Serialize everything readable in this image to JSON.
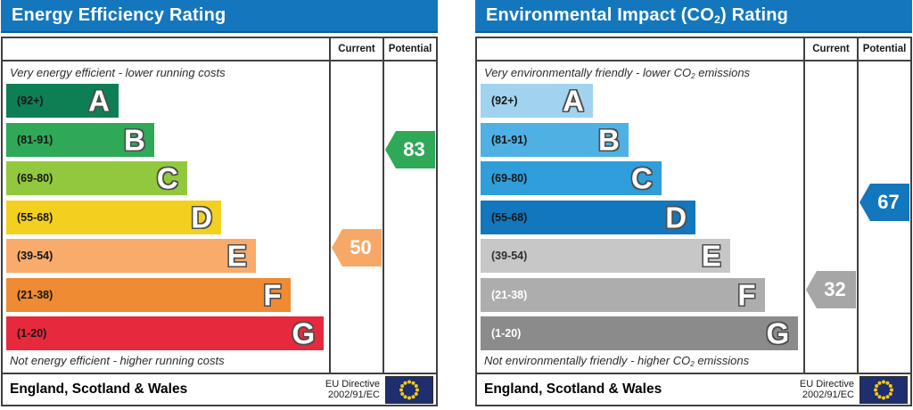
{
  "chart_data": [
    {
      "type": "bar",
      "title": "Energy Efficiency Rating",
      "categories": [
        "A",
        "B",
        "C",
        "D",
        "E",
        "F",
        "G"
      ],
      "band_ranges": [
        "92+",
        "81-91",
        "69-80",
        "55-68",
        "39-54",
        "21-38",
        "1-20"
      ],
      "band_widths_pct": [
        34.8,
        45.8,
        56.0,
        66.6,
        77.3,
        88.0,
        98.4
      ],
      "current": 50,
      "current_band": "E",
      "potential": 83,
      "potential_band": "B",
      "top_caption": "Very energy efficient - lower running costs",
      "bottom_caption": "Not energy efficient - higher running costs"
    },
    {
      "type": "bar",
      "title": "Environmental Impact (CO2) Rating",
      "categories": [
        "A",
        "B",
        "C",
        "D",
        "E",
        "F",
        "G"
      ],
      "band_ranges": [
        "92+",
        "81-91",
        "69-80",
        "55-68",
        "39-54",
        "21-38",
        "1-20"
      ],
      "band_widths_pct": [
        34.8,
        45.8,
        56.0,
        66.6,
        77.3,
        88.0,
        98.4
      ],
      "current": 32,
      "current_band": "F",
      "potential": 67,
      "potential_band": "D",
      "top_caption": "Very environmentally friendly - lower CO2 emissions",
      "bottom_caption": "Not environmentally friendly - higher CO2 emissions"
    }
  ],
  "colors": {
    "header_bg": "#1477bd",
    "border": "#404040",
    "eu_flag_bg": "#1e2e6e",
    "eu_flag_stars": "#f5c911"
  },
  "panels": [
    {
      "title_pre": "Energy Efficiency Rating",
      "title_sub": "",
      "title_post": "",
      "header_bg": "#1477bd",
      "col_current": "Current",
      "col_potential": "Potential",
      "cap_top_pre": "Very energy efficient - lower running costs",
      "cap_top_sub": "",
      "cap_top_post": "",
      "cap_bottom_pre": "Not energy efficient - higher running costs",
      "cap_bottom_sub": "",
      "cap_bottom_post": "",
      "bands": [
        {
          "letter": "A",
          "range": "(92+)",
          "min": 92,
          "max": 100,
          "width_pct": 34.8,
          "color": "#0e7e55",
          "label_color": "#161616"
        },
        {
          "letter": "B",
          "range": "(81-91)",
          "min": 81,
          "max": 91,
          "width_pct": 45.8,
          "color": "#2fa857",
          "label_color": "#161616"
        },
        {
          "letter": "C",
          "range": "(69-80)",
          "min": 69,
          "max": 80,
          "width_pct": 56.0,
          "color": "#92c83e",
          "label_color": "#161616"
        },
        {
          "letter": "D",
          "range": "(55-68)",
          "min": 55,
          "max": 68,
          "width_pct": 66.6,
          "color": "#f3d020",
          "label_color": "#161616"
        },
        {
          "letter": "E",
          "range": "(39-54)",
          "min": 39,
          "max": 54,
          "width_pct": 77.3,
          "color": "#f8ab6b",
          "label_color": "#161616"
        },
        {
          "letter": "F",
          "range": "(21-38)",
          "min": 21,
          "max": 38,
          "width_pct": 88.0,
          "color": "#ee8b33",
          "label_color": "#161616"
        },
        {
          "letter": "G",
          "range": "(1-20)",
          "min": 1,
          "max": 20,
          "width_pct": 98.4,
          "color": "#e7293d",
          "label_color": "#161616"
        }
      ],
      "current": {
        "value": 50,
        "color": "#f7a867"
      },
      "potential": {
        "value": 83,
        "color": "#2fa857"
      },
      "footer": {
        "region": "England, Scotland & Wales",
        "directive1": "EU Directive",
        "directive2": "2002/91/EC"
      }
    },
    {
      "title_pre": "Environmental Impact (CO",
      "title_sub": "2",
      "title_post": ") Rating",
      "header_bg": "#1477bd",
      "col_current": "Current",
      "col_potential": "Potential",
      "cap_top_pre": "Very environmentally friendly - lower CO",
      "cap_top_sub": "2",
      "cap_top_post": " emissions",
      "cap_bottom_pre": "Not environmentally friendly - higher CO",
      "cap_bottom_sub": "2",
      "cap_bottom_post": " emissions",
      "bands": [
        {
          "letter": "A",
          "range": "(92+)",
          "min": 92,
          "max": 100,
          "width_pct": 34.8,
          "color": "#a2d3ee",
          "label_color": "#161616"
        },
        {
          "letter": "B",
          "range": "(81-91)",
          "min": 81,
          "max": 91,
          "width_pct": 45.8,
          "color": "#4fb0e3",
          "label_color": "#161616"
        },
        {
          "letter": "C",
          "range": "(69-80)",
          "min": 69,
          "max": 80,
          "width_pct": 56.0,
          "color": "#2f9eda",
          "label_color": "#161616"
        },
        {
          "letter": "D",
          "range": "(55-68)",
          "min": 55,
          "max": 68,
          "width_pct": 66.6,
          "color": "#1277bc",
          "label_color": "#161616"
        },
        {
          "letter": "E",
          "range": "(39-54)",
          "min": 39,
          "max": 54,
          "width_pct": 77.3,
          "color": "#c7c7c7",
          "label_color": "#303030"
        },
        {
          "letter": "F",
          "range": "(21-38)",
          "min": 21,
          "max": 38,
          "width_pct": 88.0,
          "color": "#adadad",
          "label_color": "#ffffff"
        },
        {
          "letter": "G",
          "range": "(1-20)",
          "min": 1,
          "max": 20,
          "width_pct": 98.4,
          "color": "#8b8b8b",
          "label_color": "#ffffff"
        }
      ],
      "current": {
        "value": 32,
        "color": "#a6a6a6"
      },
      "potential": {
        "value": 67,
        "color": "#1277bc"
      },
      "footer": {
        "region": "England, Scotland & Wales",
        "directive1": "EU Directive",
        "directive2": "2002/91/EC"
      }
    }
  ]
}
